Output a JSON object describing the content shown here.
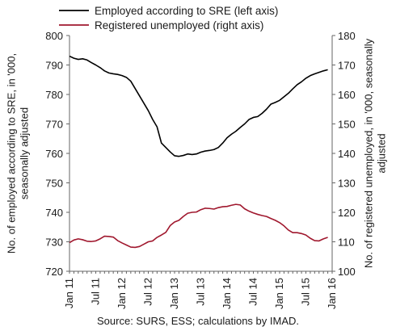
{
  "chart_data": {
    "type": "line",
    "legend": {
      "placement": "top",
      "entries": [
        {
          "label": "Employed according to SRE (left axis)",
          "color": "#000000"
        },
        {
          "label": "Registered unemployed (right axis)",
          "color": "#a0182e"
        }
      ]
    },
    "ylabel_left": "No. of employed according to SRE, in '000, seasonally adjusted",
    "ylabel_right": "No. of registered unemployed, in '000, seasonally adjusted",
    "source": "Source: SURS, ESS; calculations by IMAD.",
    "ylim_left": [
      720,
      800
    ],
    "ylim_right": [
      100,
      180
    ],
    "yticks_left": [
      "720",
      "730",
      "740",
      "750",
      "760",
      "770",
      "780",
      "790",
      "800"
    ],
    "yticks_right": [
      "100",
      "110",
      "120",
      "130",
      "140",
      "150",
      "160",
      "170",
      "180"
    ],
    "xlim": [
      "2011-01",
      "2016-01"
    ],
    "xticks": [
      "Jan 11",
      "Jul 11",
      "Jan 12",
      "Jul 12",
      "Jan 13",
      "Jul 13",
      "Jan 14",
      "Jul 14",
      "Jan 15",
      "Jul 15",
      "Jan 16"
    ],
    "grid": false,
    "x": [
      "2011-01",
      "2011-02",
      "2011-03",
      "2011-04",
      "2011-05",
      "2011-06",
      "2011-07",
      "2011-08",
      "2011-09",
      "2011-10",
      "2011-11",
      "2011-12",
      "2012-01",
      "2012-02",
      "2012-03",
      "2012-04",
      "2012-05",
      "2012-06",
      "2012-07",
      "2012-08",
      "2012-09",
      "2012-10",
      "2012-11",
      "2012-12",
      "2013-01",
      "2013-02",
      "2013-03",
      "2013-04",
      "2013-05",
      "2013-06",
      "2013-07",
      "2013-08",
      "2013-09",
      "2013-10",
      "2013-11",
      "2013-12",
      "2014-01",
      "2014-02",
      "2014-03",
      "2014-04",
      "2014-05",
      "2014-06",
      "2014-07",
      "2014-08",
      "2014-09",
      "2014-10",
      "2014-11",
      "2014-12",
      "2015-01",
      "2015-02",
      "2015-03",
      "2015-04",
      "2015-05",
      "2015-06",
      "2015-07",
      "2015-08",
      "2015-09",
      "2015-10",
      "2015-11",
      "2015-12"
    ],
    "series": [
      {
        "name": "Employed according to SRE (left axis)",
        "axis": "left",
        "color": "#000000",
        "values": [
          793.0,
          792.3,
          791.9,
          792.1,
          791.7,
          790.8,
          790.0,
          789.1,
          788.0,
          787.3,
          787.0,
          786.8,
          786.4,
          785.8,
          784.5,
          782.0,
          779.5,
          777.0,
          774.5,
          771.5,
          769.0,
          763.5,
          762.0,
          760.5,
          759.2,
          759.0,
          759.3,
          759.8,
          759.6,
          759.8,
          760.4,
          760.8,
          761.0,
          761.3,
          762.0,
          763.5,
          765.3,
          766.5,
          767.5,
          768.8,
          770.0,
          771.5,
          772.2,
          772.5,
          773.6,
          775.0,
          776.7,
          777.3,
          778.0,
          779.2,
          780.4,
          781.9,
          783.3,
          784.3,
          785.5,
          786.4,
          787.0,
          787.5,
          788.0,
          788.4
        ]
      },
      {
        "name": "Registered unemployed (right axis)",
        "axis": "right",
        "color": "#a0182e",
        "values": [
          109.7,
          110.6,
          111.0,
          110.7,
          110.2,
          110.1,
          110.3,
          111.0,
          111.9,
          111.8,
          111.6,
          110.4,
          109.6,
          108.9,
          108.2,
          108.1,
          108.4,
          109.2,
          110.0,
          110.3,
          111.5,
          112.3,
          113.2,
          115.5,
          116.7,
          117.3,
          118.6,
          119.7,
          120.0,
          120.1,
          120.9,
          121.4,
          121.3,
          121.1,
          121.6,
          121.9,
          122.0,
          122.4,
          122.7,
          122.5,
          121.2,
          120.4,
          119.8,
          119.3,
          118.9,
          118.6,
          117.9,
          117.3,
          116.5,
          115.4,
          114.0,
          113.1,
          113.1,
          112.8,
          112.3,
          111.2,
          110.4,
          110.3,
          111.0,
          111.5
        ]
      }
    ]
  }
}
